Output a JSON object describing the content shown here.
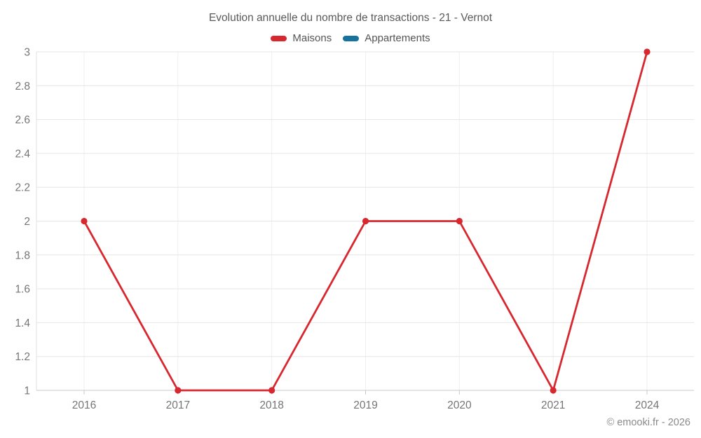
{
  "title": "Evolution annuelle du nombre de transactions - 21 - Vernot",
  "legend": {
    "items": [
      {
        "label": "Maisons",
        "color": "#d7282f"
      },
      {
        "label": "Appartements",
        "color": "#17739e"
      }
    ]
  },
  "footer": {
    "copyright": "© emooki.fr - 2026"
  },
  "colors": {
    "maisons": "#d7282f",
    "appartements": "#17739e",
    "grid_horizontal": "#e6e6e6",
    "grid_vertical": "#efefef",
    "axis_bottom": "#c9c9c9",
    "axis_left": "#e2e2e2",
    "tick_text": "#757575"
  },
  "chart_data": {
    "type": "line",
    "title": "Evolution annuelle du nombre de transactions - 21 - Vernot",
    "categories": [
      "2016",
      "2017",
      "2018",
      "2019",
      "2020",
      "2021",
      "2024"
    ],
    "series": [
      {
        "name": "Maisons",
        "color": "#d7282f",
        "values": [
          2,
          1,
          1,
          2,
          2,
          1,
          3
        ]
      },
      {
        "name": "Appartements",
        "color": "#17739e",
        "values": []
      }
    ],
    "xlabel": "",
    "ylabel": "",
    "ylim": [
      1,
      3
    ],
    "yticks": [
      1,
      1.2,
      1.4,
      1.6,
      1.8,
      2,
      2.2,
      2.4,
      2.6,
      2.8,
      3
    ],
    "grid": true,
    "legend_position": "top"
  }
}
